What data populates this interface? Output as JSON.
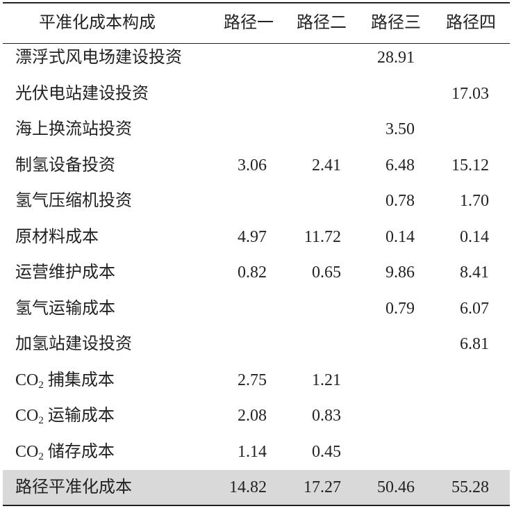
{
  "table": {
    "header": [
      "平准化成本构成",
      "路径一",
      "路径二",
      "路径三",
      "路径四"
    ],
    "rows": [
      {
        "label": "漂浮式风电场建设投资",
        "values": [
          null,
          null,
          "28.91",
          null
        ]
      },
      {
        "label": "光伏电站建设投资",
        "values": [
          null,
          null,
          null,
          "17.03"
        ]
      },
      {
        "label": "海上换流站投资",
        "values": [
          null,
          null,
          "3.50",
          null
        ]
      },
      {
        "label": "制氢设备投资",
        "values": [
          "3.06",
          "2.41",
          "6.48",
          "15.12"
        ]
      },
      {
        "label": "氢气压缩机投资",
        "values": [
          null,
          null,
          "0.78",
          "1.70"
        ]
      },
      {
        "label": "原材料成本",
        "values": [
          "4.97",
          "11.72",
          "0.14",
          "0.14"
        ]
      },
      {
        "label": "运营维护成本",
        "values": [
          "0.82",
          "0.65",
          "9.86",
          "8.41"
        ]
      },
      {
        "label": "氢气运输成本",
        "values": [
          null,
          null,
          "0.79",
          "6.07"
        ]
      },
      {
        "label": "加氢站建设投资",
        "values": [
          null,
          null,
          null,
          "6.81"
        ]
      },
      {
        "label": [
          "CO",
          "2",
          "捕集成本"
        ],
        "values": [
          "2.75",
          "1.21",
          null,
          null
        ]
      },
      {
        "label": [
          "CO",
          "2",
          "运输成本"
        ],
        "values": [
          "2.08",
          "0.83",
          null,
          null
        ]
      },
      {
        "label": [
          "CO",
          "2",
          "储存成本"
        ],
        "values": [
          "1.14",
          "0.45",
          null,
          null
        ]
      },
      {
        "label": "路径平准化成本",
        "values": [
          "14.82",
          "17.27",
          "50.46",
          "55.28"
        ]
      }
    ]
  }
}
